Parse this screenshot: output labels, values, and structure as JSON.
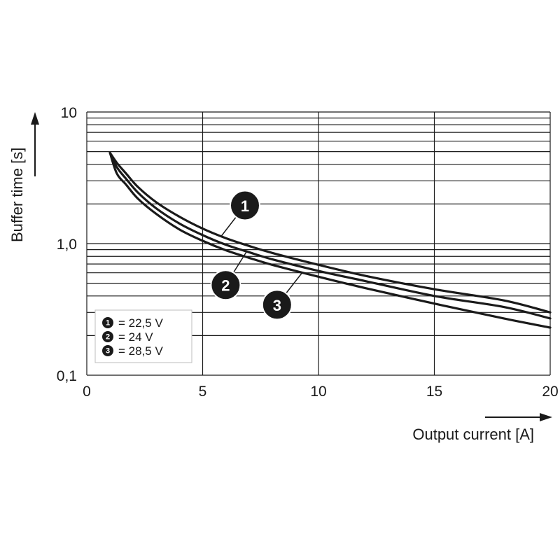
{
  "chart_data": {
    "type": "line",
    "xlabel": "Output current [A]",
    "ylabel": "Buffer time [s]",
    "xlim": [
      0,
      20
    ],
    "ylim": [
      0.1,
      10
    ],
    "y_scale": "log",
    "grid": true,
    "legend_position": "bottom-left",
    "x_ticks": [
      "0",
      "5",
      "10",
      "15",
      "20"
    ],
    "y_ticks": [
      "0,1",
      "1,0",
      "10"
    ],
    "series": [
      {
        "name": "1",
        "legend_label": "= 22,5 V",
        "x": [
          1.0,
          1.3,
          1.7,
          2.2,
          3,
          4,
          5,
          6,
          7,
          8,
          10,
          12,
          15,
          18,
          20
        ],
        "y": [
          4.9,
          4.1,
          3.4,
          2.7,
          2.06,
          1.6,
          1.3,
          1.1,
          0.96,
          0.85,
          0.69,
          0.57,
          0.45,
          0.37,
          0.3
        ]
      },
      {
        "name": "2",
        "legend_label": "= 24 V",
        "x": [
          1.0,
          1.3,
          1.7,
          2.2,
          3,
          4,
          5,
          6,
          7,
          8,
          10,
          12,
          15,
          18,
          20
        ],
        "y": [
          4.9,
          3.8,
          3.1,
          2.45,
          1.85,
          1.42,
          1.16,
          0.98,
          0.86,
          0.76,
          0.62,
          0.52,
          0.4,
          0.33,
          0.27
        ]
      },
      {
        "name": "3",
        "legend_label": "= 28,5 V",
        "x": [
          1.0,
          1.3,
          1.7,
          2.2,
          3,
          4,
          5,
          6,
          7,
          8,
          10,
          12,
          15,
          18,
          20
        ],
        "y": [
          4.9,
          3.4,
          2.8,
          2.2,
          1.68,
          1.28,
          1.05,
          0.89,
          0.78,
          0.69,
          0.56,
          0.46,
          0.35,
          0.27,
          0.23
        ]
      }
    ],
    "callouts": [
      {
        "label": "1",
        "series": "1",
        "at_x": 5.8
      },
      {
        "label": "2",
        "series": "2",
        "at_x": 6.9
      },
      {
        "label": "3",
        "series": "3",
        "at_x": 9.3
      }
    ]
  }
}
